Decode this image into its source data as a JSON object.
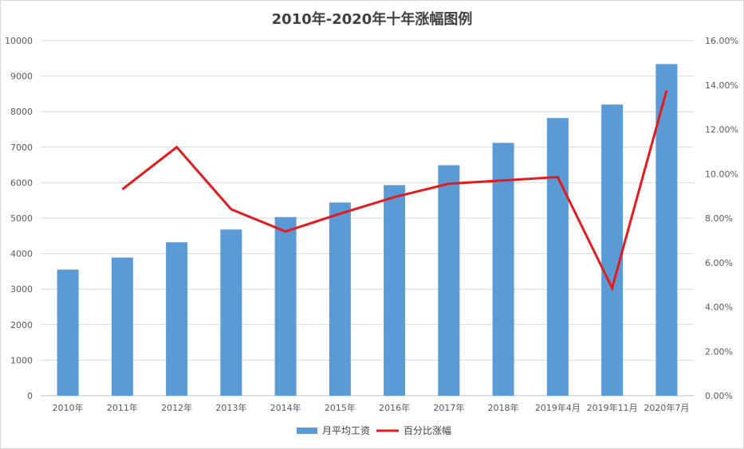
{
  "chart_data": {
    "type": "bar",
    "title": "2010年-2020年十年涨幅图例",
    "categories": [
      "2010年",
      "2011年",
      "2012年",
      "2013年",
      "2014年",
      "2015年",
      "2016年",
      "2017年",
      "2018年",
      "2019年4月",
      "2019年11月",
      "2020年7月"
    ],
    "series": [
      {
        "name": "月平均工资",
        "type": "bar",
        "axis": "left",
        "color": "#5b9bd5",
        "values": [
          3550,
          3890,
          4320,
          4680,
          5030,
          5440,
          5930,
          6490,
          7120,
          7820,
          8200,
          9340
        ]
      },
      {
        "name": "百分比涨幅",
        "type": "line",
        "axis": "right",
        "color": "#e41a1c",
        "values": [
          null,
          9.3,
          11.2,
          8.4,
          7.4,
          8.2,
          8.95,
          9.55,
          9.7,
          9.85,
          4.85,
          13.75
        ]
      }
    ],
    "y_left": {
      "min": 0,
      "max": 10000,
      "ticks": [
        "0",
        "1000",
        "2000",
        "3000",
        "4000",
        "5000",
        "6000",
        "7000",
        "8000",
        "9000",
        "10000"
      ]
    },
    "y_right": {
      "min": 0,
      "max": 16,
      "ticks": [
        "0.00%",
        "2.00%",
        "4.00%",
        "6.00%",
        "8.00%",
        "10.00%",
        "12.00%",
        "14.00%",
        "16.00%"
      ]
    },
    "grid": true,
    "legend_position": "bottom"
  }
}
